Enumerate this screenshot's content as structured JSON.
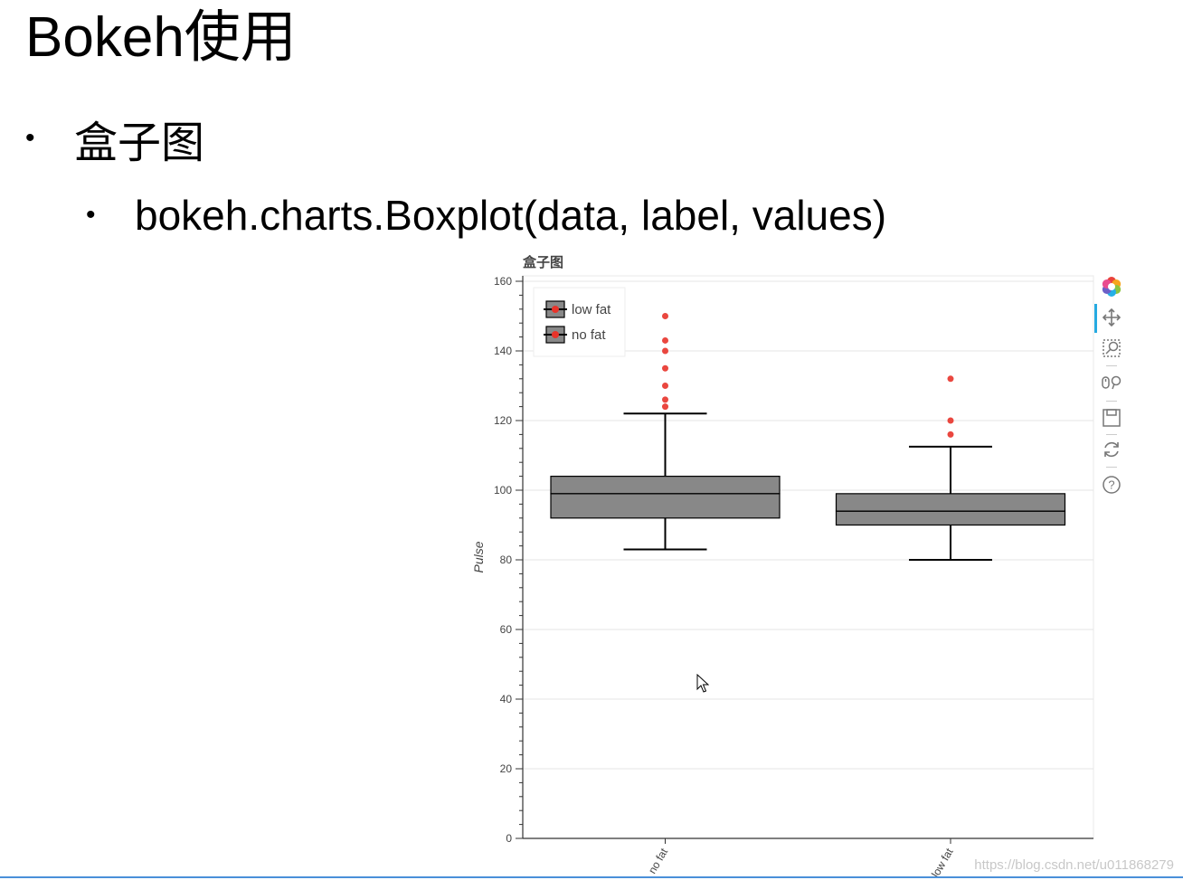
{
  "slide": {
    "title": "Bokeh使用",
    "bullet1": "盒子图",
    "bullet2": "bokeh.charts.Boxplot(data, label, values)"
  },
  "watermark": "https://blog.csdn.net/u011868279",
  "toolbar": {
    "tools": [
      "bokeh-logo-icon",
      "pan-icon",
      "box-zoom-icon",
      "wheel-zoom-icon",
      "save-icon",
      "reset-icon",
      "help-icon"
    ]
  },
  "colors": {
    "box_fill": "#888888",
    "outlier": "#e8332a",
    "grid": "#e5e5e5",
    "axis": "#333333"
  },
  "chart_data": {
    "type": "box",
    "title": "盒子图",
    "ylabel": "Pulse",
    "xlabel": "",
    "ylim": [
      0,
      160
    ],
    "yticks": [
      0,
      20,
      40,
      60,
      80,
      100,
      120,
      140,
      160
    ],
    "grid": true,
    "legend_position": "top-left",
    "legend": [
      "low fat",
      "no fat"
    ],
    "categories": [
      "no fat",
      "low fat"
    ],
    "boxes": [
      {
        "category": "no fat",
        "whisker_low": 83,
        "q1": 92,
        "median": 99,
        "q3": 104,
        "whisker_high": 122,
        "outliers": [
          124,
          126,
          130,
          135,
          140,
          143,
          150
        ]
      },
      {
        "category": "low fat",
        "whisker_low": 80,
        "q1": 90,
        "median": 94,
        "q3": 99,
        "whisker_high": 112.5,
        "outliers": [
          116,
          120,
          132
        ]
      }
    ]
  }
}
